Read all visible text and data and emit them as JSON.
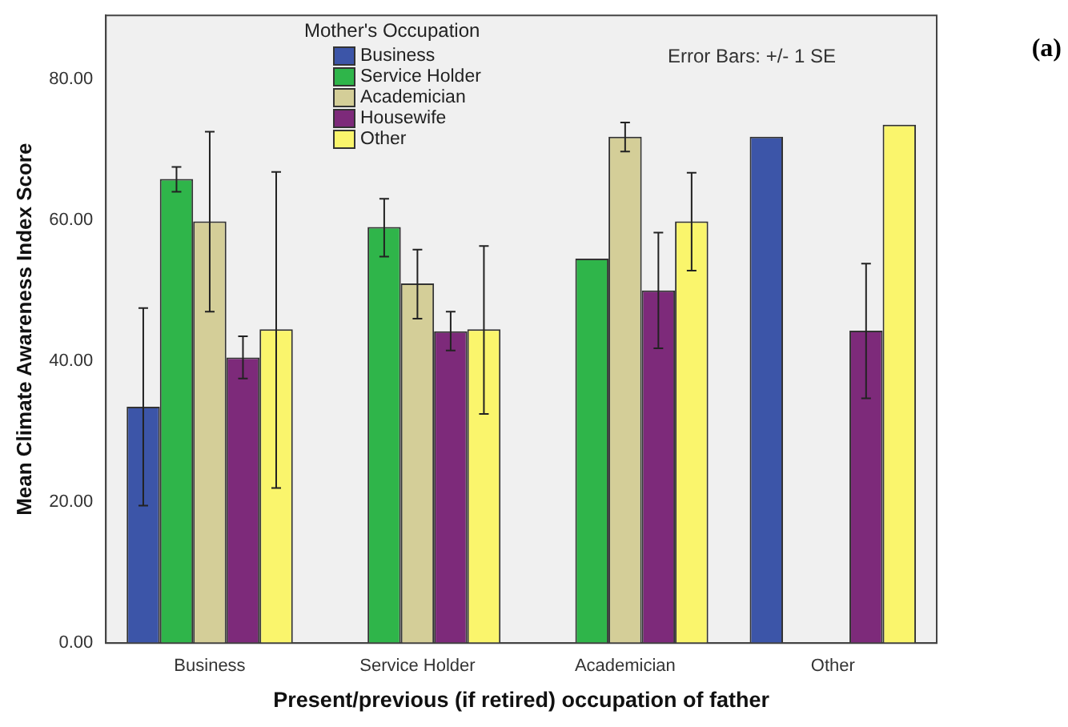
{
  "chart_data": {
    "type": "bar",
    "xlabel": "Present/previous (if retired) occupation of father",
    "ylabel": "Mean Climate Awareness Index Score",
    "legend_title": "Mother's Occupation",
    "legend": "top",
    "grid": false,
    "categories": [
      "Business",
      "Service Holder",
      "Academician",
      "Other"
    ],
    "ylim": [
      0,
      89
    ],
    "yticks": [
      {
        "value": 0,
        "label": "0.00"
      },
      {
        "value": 20,
        "label": "20.00"
      },
      {
        "value": 40,
        "label": "40.00"
      },
      {
        "value": 60,
        "label": "60.00"
      },
      {
        "value": 80,
        "label": "80.00"
      }
    ],
    "series": [
      {
        "name": "Business",
        "color": "#3c55a8",
        "values": [
          33.5,
          null,
          null,
          71.8
        ],
        "errors": [
          [
            19.5,
            47.5
          ],
          null,
          null,
          null
        ]
      },
      {
        "name": "Service Holder",
        "color": "#2fb54a",
        "values": [
          65.8,
          59,
          54.5,
          null
        ],
        "errors": [
          [
            64,
            67.5
          ],
          [
            54.8,
            63
          ],
          null,
          null
        ]
      },
      {
        "name": "Academician",
        "color": "#d4ce98",
        "values": [
          59.8,
          51,
          71.8,
          null
        ],
        "errors": [
          [
            47,
            72.5
          ],
          [
            46,
            55.8
          ],
          [
            69.7,
            73.8
          ],
          null
        ]
      },
      {
        "name": "Housewife",
        "color": "#7d2a7a",
        "values": [
          40.5,
          44.2,
          50,
          44.3
        ],
        "errors": [
          [
            37.5,
            43.5
          ],
          [
            41.5,
            47
          ],
          [
            41.8,
            58.2
          ],
          [
            34.7,
            53.8
          ]
        ]
      },
      {
        "name": "Other",
        "color": "#faf56c",
        "values": [
          44.5,
          44.5,
          59.8,
          73.5
        ],
        "errors": [
          [
            22,
            66.8
          ],
          [
            32.5,
            56.3
          ],
          [
            52.8,
            66.7
          ],
          null
        ]
      }
    ],
    "annotations": [
      "Error Bars: +/- 1 SE",
      "(a)"
    ]
  }
}
